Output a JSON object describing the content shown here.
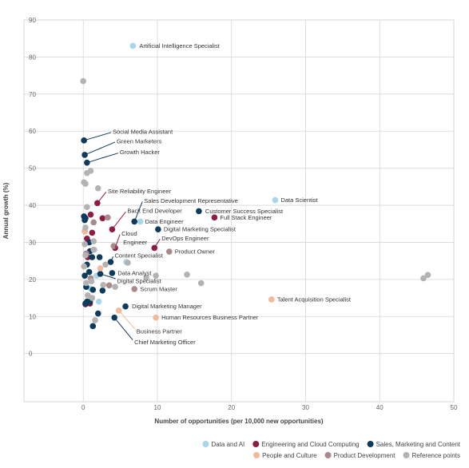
{
  "chart_data": {
    "type": "scatter",
    "xlabel": "Number of opportunities (per 10,000 new opportunities)",
    "ylabel": "Annual growth (%)",
    "xlim": [
      -8,
      50
    ],
    "ylim": [
      -13,
      90
    ],
    "xticks": [
      0,
      10,
      20,
      30,
      40,
      50
    ],
    "yticks": [
      0,
      10,
      20,
      30,
      40,
      50,
      60,
      70,
      80,
      90
    ],
    "grid": true,
    "series": [
      {
        "name": "Data and AI",
        "color": "#a8d5ea",
        "x": [
          6.7,
          7.7,
          25.9,
          5.8,
          1.5,
          2.1,
          1.8,
          1.0
        ],
        "y": [
          83,
          35.6,
          41.4,
          24.7,
          28,
          14,
          21,
          17.5
        ],
        "labels": [
          "Artificial Intelligence Specialist",
          "Data Engineer",
          "Data Scientist",
          null,
          null,
          null,
          null,
          null
        ]
      },
      {
        "name": "Engineering and Cloud Computing",
        "color": "#8c1d40",
        "x": [
          1.9,
          3.9,
          17.7,
          9.6,
          4.3,
          1.0,
          2.6,
          0.2,
          1.2,
          0.5,
          0.6,
          0.3,
          0.9
        ],
        "y": [
          40.6,
          33.5,
          36.7,
          28.5,
          28.5,
          37.5,
          36.5,
          33,
          32.6,
          31,
          26,
          13.3,
          13.5
        ],
        "labels": [
          "Site Reliability Engineer",
          "Back End Developer",
          "Full Stack Engineer",
          "DevOps Engineer",
          "Cloud Engineer",
          null,
          null,
          null,
          null,
          null,
          null,
          null,
          null
        ]
      },
      {
        "name": "Sales, Marketing and Content",
        "color": "#0e3a5b",
        "x": [
          0.1,
          0.2,
          0.5,
          6.9,
          15.6,
          10.1,
          3.7,
          3.9,
          2.3,
          5.7,
          4.2,
          0.1,
          0.3,
          0.2,
          0.8,
          0.8,
          0.5,
          0.2,
          0.4,
          1.3,
          0.5,
          0.9,
          0.3,
          2.6,
          1.3,
          2.0,
          1.2,
          2.2,
          0.9
        ],
        "y": [
          57.5,
          53.6,
          51.5,
          35.6,
          38.4,
          33.5,
          24.7,
          21.7,
          21.5,
          12.7,
          9.7,
          37,
          36.5,
          36,
          30,
          22,
          24,
          21,
          18,
          17.2,
          14,
          14,
          13.5,
          17,
          7.4,
          10.8,
          26,
          26,
          27.6
        ],
        "labels": [
          "Social Media Assistant",
          "Green Marketers",
          "Growth Hacker",
          "Sales Development Representative",
          "Customer Success Specialist",
          "Digital Marketing Specialist",
          "Content Specialist",
          "Data Analyst",
          "Digital Specialist",
          "Digital Marketing Manager",
          "Chief Marketing Officer",
          null,
          null,
          null,
          null,
          null,
          null,
          null,
          null,
          null,
          null,
          null,
          null,
          null,
          null,
          null,
          null,
          null,
          null
        ]
      },
      {
        "name": "People and Culture",
        "color": "#f3b99b",
        "x": [
          25.4,
          9.8,
          4.8,
          0.2,
          2.3
        ],
        "y": [
          14.6,
          9.7,
          11.6,
          33,
          23
        ],
        "labels": [
          "Talent Acquisition Specialist",
          "Human Resources Business Partner",
          "Business Partner",
          null,
          null
        ]
      },
      {
        "name": "Product Development",
        "color": "#a88a8d",
        "x": [
          11.6,
          6.9,
          3.3,
          1.4,
          0.4,
          1.0,
          3.5,
          4.1
        ],
        "y": [
          27.5,
          17.4,
          36.7,
          35.4,
          27,
          20.3,
          18.4,
          29
        ],
        "labels": [
          "Product Owner",
          "Scrum Master",
          null,
          null,
          null,
          null,
          null,
          null
        ]
      },
      {
        "name": "Reference points",
        "color": "#b3b3b3",
        "x": [
          0,
          45.9,
          46.5,
          14,
          15.9,
          8.5,
          9.8,
          2,
          0.1,
          0.3,
          0.5,
          1.0,
          0.5,
          0.3,
          1.4,
          0.2,
          0.3,
          1.4,
          0.4,
          1.1,
          2.7,
          0.6,
          1.2,
          1.6,
          4.3,
          3,
          6,
          0.1
        ],
        "y": [
          73.5,
          20.3,
          21.2,
          21.3,
          19,
          20.5,
          21,
          44.6,
          46.2,
          45.8,
          48.7,
          49.3,
          39.5,
          34,
          30.3,
          29.5,
          26.5,
          28,
          19,
          19.5,
          18.5,
          15.7,
          15,
          9,
          18,
          24,
          24.5,
          23.5
        ],
        "labels": [
          null,
          null,
          null,
          null,
          null,
          null,
          null,
          null,
          null,
          null,
          null,
          null,
          null,
          null,
          null,
          null,
          null,
          null,
          null,
          null,
          null,
          null,
          null,
          null,
          null,
          null,
          null,
          null
        ]
      }
    ]
  }
}
